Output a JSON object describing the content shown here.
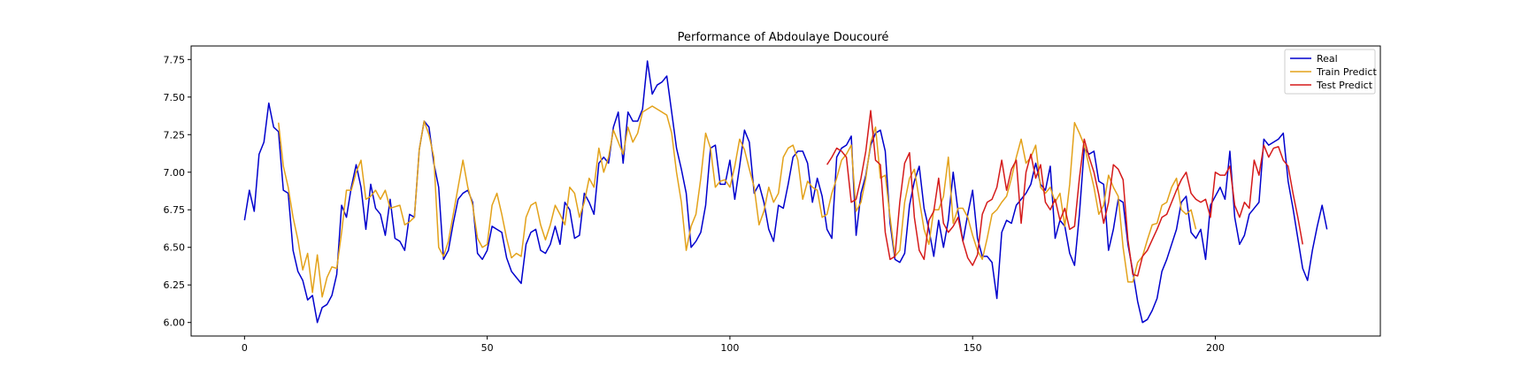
{
  "chart_data": {
    "type": "line",
    "title": "Performance of Abdoulaye Doucouré",
    "xlabel": "",
    "ylabel": "",
    "xlim": [
      -11,
      234
    ],
    "ylim": [
      5.91,
      7.84
    ],
    "xticks": [
      0,
      50,
      100,
      150,
      200
    ],
    "yticks": [
      6.0,
      6.25,
      6.5,
      6.75,
      7.0,
      7.25,
      7.5,
      7.75
    ],
    "grid": false,
    "legend": "top-right",
    "series": [
      {
        "name": "Real",
        "color": "#0000cd",
        "x_start": 0,
        "values": [
          6.68,
          6.88,
          6.74,
          7.12,
          7.2,
          7.46,
          7.3,
          7.27,
          6.88,
          6.86,
          6.48,
          6.34,
          6.28,
          6.15,
          6.18,
          6.0,
          6.1,
          6.12,
          6.18,
          6.32,
          6.78,
          6.7,
          6.9,
          7.05,
          6.9,
          6.62,
          6.92,
          6.76,
          6.72,
          6.58,
          6.82,
          6.56,
          6.54,
          6.48,
          6.72,
          6.7,
          7.15,
          7.34,
          7.3,
          7.06,
          6.9,
          6.42,
          6.48,
          6.66,
          6.82,
          6.86,
          6.88,
          6.8,
          6.46,
          6.42,
          6.48,
          6.64,
          6.62,
          6.6,
          6.43,
          6.34,
          6.3,
          6.26,
          6.52,
          6.6,
          6.62,
          6.48,
          6.46,
          6.52,
          6.64,
          6.52,
          6.8,
          6.75,
          6.56,
          6.58,
          6.86,
          6.8,
          6.72,
          7.06,
          7.1,
          7.06,
          7.3,
          7.4,
          7.06,
          7.4,
          7.34,
          7.34,
          7.42,
          7.74,
          7.52,
          7.58,
          7.6,
          7.64,
          7.4,
          7.16,
          7.02,
          6.86,
          6.5,
          6.54,
          6.6,
          6.78,
          7.16,
          7.18,
          6.92,
          6.92,
          7.08,
          6.82,
          7.04,
          7.28,
          7.2,
          6.86,
          6.92,
          6.8,
          6.62,
          6.54,
          6.78,
          6.76,
          6.92,
          7.1,
          7.14,
          7.14,
          7.06,
          6.8,
          6.96,
          6.84,
          6.62,
          6.56,
          7.1,
          7.16,
          7.18,
          7.24,
          6.58,
          6.86,
          6.98,
          7.18,
          7.26,
          7.28,
          7.14,
          6.66,
          6.42,
          6.4,
          6.46,
          6.78,
          6.94,
          7.04,
          6.76,
          6.62,
          6.44,
          6.68,
          6.5,
          6.68,
          7.0,
          6.74,
          6.54,
          6.72,
          6.88,
          6.56,
          6.44,
          6.44,
          6.4,
          6.16,
          6.6,
          6.68,
          6.66,
          6.78,
          6.82,
          6.86,
          6.92,
          7.06,
          6.92,
          6.88,
          7.04,
          6.56,
          6.68,
          6.64,
          6.46,
          6.38,
          6.72,
          7.16,
          7.12,
          7.14,
          6.94,
          6.92,
          6.48,
          6.62,
          6.82,
          6.8,
          6.52,
          6.34,
          6.14,
          6.0,
          6.02,
          6.08,
          6.16,
          6.34,
          6.42,
          6.52,
          6.62,
          6.8,
          6.84,
          6.6,
          6.56,
          6.62,
          6.42,
          6.78,
          6.84,
          6.9,
          6.82,
          7.14,
          6.7,
          6.52,
          6.58,
          6.72,
          6.76,
          6.8,
          7.22,
          7.18,
          7.2,
          7.22,
          7.26,
          6.94,
          6.76,
          6.56,
          6.36,
          6.28,
          6.48,
          6.64,
          6.78,
          6.62
        ]
      },
      {
        "name": "Train Predict",
        "color": "#e3a21a",
        "x_start": 7,
        "values": [
          7.33,
          7.04,
          6.9,
          6.7,
          6.55,
          6.35,
          6.46,
          6.2,
          6.45,
          6.17,
          6.3,
          6.37,
          6.36,
          6.6,
          6.88,
          6.88,
          7.0,
          7.08,
          6.82,
          6.84,
          6.88,
          6.82,
          6.88,
          6.76,
          6.77,
          6.78,
          6.65,
          6.67,
          6.7,
          7.15,
          7.34,
          7.25,
          7.1,
          6.5,
          6.44,
          6.54,
          6.72,
          6.9,
          7.08,
          6.9,
          6.78,
          6.56,
          6.5,
          6.52,
          6.78,
          6.86,
          6.72,
          6.56,
          6.43,
          6.46,
          6.44,
          6.7,
          6.78,
          6.8,
          6.65,
          6.55,
          6.65,
          6.78,
          6.72,
          6.65,
          6.9,
          6.86,
          6.7,
          6.8,
          6.96,
          6.9,
          7.16,
          7.0,
          7.1,
          7.28,
          7.2,
          7.12,
          7.3,
          7.2,
          7.26,
          7.4,
          7.42,
          7.44,
          7.42,
          7.4,
          7.38,
          7.26,
          7.0,
          6.8,
          6.48,
          6.64,
          6.72,
          6.96,
          7.26,
          7.16,
          6.9,
          6.94,
          6.95,
          6.9,
          7.04,
          7.22,
          7.15,
          7.02,
          6.9,
          6.65,
          6.74,
          6.9,
          6.8,
          6.86,
          7.1,
          7.16,
          7.18,
          7.08,
          6.82,
          6.94,
          6.9,
          6.88,
          6.7,
          6.72,
          6.86,
          6.96,
          7.08,
          7.12,
          7.18,
          6.74,
          6.8,
          6.96,
          7.2,
          7.3,
          6.96,
          6.98,
          6.7,
          6.44,
          6.48,
          6.8,
          6.96,
          7.02,
          6.82,
          6.62,
          6.52,
          6.75,
          6.75,
          6.84,
          7.1,
          6.66,
          6.76,
          6.76,
          6.7,
          6.58,
          6.48,
          6.42,
          6.56,
          6.72,
          6.75,
          6.8,
          6.84,
          6.96,
          7.1,
          7.22,
          7.06,
          7.1,
          7.18,
          6.9,
          6.86,
          6.9,
          6.8,
          6.86,
          6.64,
          6.92,
          7.33,
          7.26,
          7.18,
          7.04,
          6.9,
          6.72,
          6.78,
          6.98,
          6.9,
          6.84,
          6.5,
          6.27,
          6.27,
          6.4,
          6.44,
          6.55,
          6.65,
          6.66,
          6.78,
          6.8,
          6.9,
          6.96,
          6.75,
          6.72,
          6.75,
          6.62
        ]
      },
      {
        "name": "Test Predict",
        "color": "#d51a1a",
        "x_start": 120,
        "values": [
          7.05,
          7.1,
          7.16,
          7.14,
          7.1,
          6.8,
          6.82,
          6.96,
          7.14,
          7.41,
          7.08,
          7.05,
          6.6,
          6.42,
          6.44,
          6.8,
          7.06,
          7.13,
          6.7,
          6.48,
          6.42,
          6.68,
          6.74,
          6.96,
          6.66,
          6.6,
          6.64,
          6.7,
          6.54,
          6.43,
          6.38,
          6.45,
          6.72,
          6.8,
          6.82,
          6.9,
          7.08,
          6.88,
          7.02,
          7.08,
          6.66,
          7.0,
          7.12,
          6.96,
          7.05,
          6.8,
          6.75,
          6.82,
          6.68,
          6.76,
          6.62,
          6.64,
          6.96,
          7.22,
          7.1,
          7.0,
          6.85,
          6.66,
          6.8,
          7.05,
          7.02,
          6.95,
          6.55,
          6.32,
          6.31,
          6.44,
          6.48,
          6.55,
          6.62,
          6.7,
          6.72,
          6.8,
          6.88,
          6.95,
          7.0,
          6.86,
          6.82,
          6.8,
          6.82,
          6.7,
          7.0,
          6.98,
          6.98,
          7.04,
          6.78,
          6.7,
          6.8,
          6.76,
          7.08,
          6.98,
          7.18,
          7.1,
          7.16,
          7.17,
          7.08,
          7.04,
          6.86,
          6.7,
          6.52
        ]
      }
    ]
  }
}
